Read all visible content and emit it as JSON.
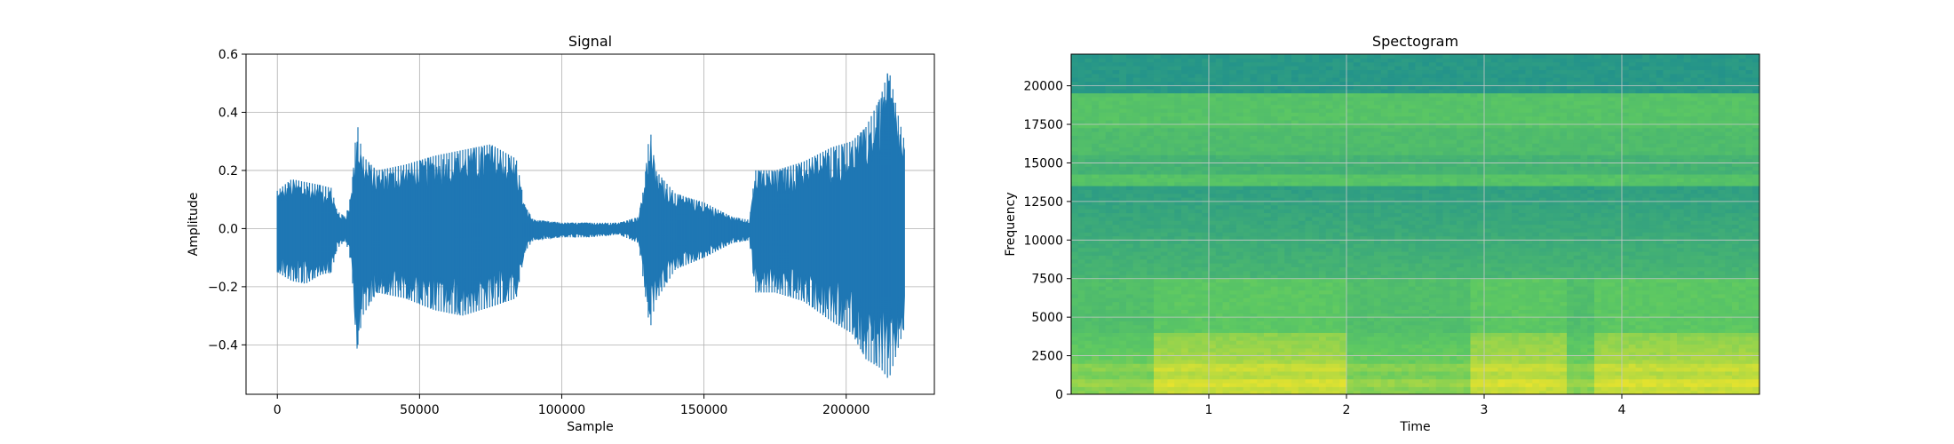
{
  "chart_data": [
    {
      "type": "line",
      "title": "Signal",
      "xlabel": "Sample",
      "ylabel": "Amplitude",
      "xlim": [
        -11000,
        231000
      ],
      "ylim": [
        -0.57,
        0.6
      ],
      "grid": true,
      "xticks": [
        0,
        50000,
        100000,
        150000,
        200000
      ],
      "yticks": [
        -0.4,
        -0.2,
        0.0,
        0.2,
        0.4,
        0.6
      ],
      "xtick_labels": [
        "0",
        "50000",
        "100000",
        "150000",
        "200000"
      ],
      "ytick_labels": [
        "−0.4",
        "−0.2",
        "0.0",
        "0.2",
        "0.4",
        "0.6"
      ],
      "color": "#1f77b4",
      "series": [
        {
          "envelope": [
            {
              "x": 0,
              "max": 0.13,
              "min": -0.15
            },
            {
              "x": 5000,
              "max": 0.17,
              "min": -0.18
            },
            {
              "x": 10000,
              "max": 0.16,
              "min": -0.19
            },
            {
              "x": 15000,
              "max": 0.15,
              "min": -0.16
            },
            {
              "x": 19000,
              "max": 0.14,
              "min": -0.15
            },
            {
              "x": 21000,
              "max": 0.06,
              "min": -0.07
            },
            {
              "x": 24000,
              "max": 0.04,
              "min": -0.04
            },
            {
              "x": 26000,
              "max": 0.12,
              "min": -0.12
            },
            {
              "x": 28000,
              "max": 0.37,
              "min": -0.42
            },
            {
              "x": 30000,
              "max": 0.25,
              "min": -0.3
            },
            {
              "x": 35000,
              "max": 0.2,
              "min": -0.22
            },
            {
              "x": 45000,
              "max": 0.22,
              "min": -0.24
            },
            {
              "x": 55000,
              "max": 0.25,
              "min": -0.28
            },
            {
              "x": 65000,
              "max": 0.27,
              "min": -0.3
            },
            {
              "x": 75000,
              "max": 0.29,
              "min": -0.27
            },
            {
              "x": 84000,
              "max": 0.24,
              "min": -0.24
            },
            {
              "x": 87000,
              "max": 0.08,
              "min": -0.08
            },
            {
              "x": 90000,
              "max": 0.03,
              "min": -0.04
            },
            {
              "x": 100000,
              "max": 0.02,
              "min": -0.03
            },
            {
              "x": 110000,
              "max": 0.02,
              "min": -0.03
            },
            {
              "x": 120000,
              "max": 0.02,
              "min": -0.02
            },
            {
              "x": 127000,
              "max": 0.04,
              "min": -0.05
            },
            {
              "x": 129000,
              "max": 0.15,
              "min": -0.2
            },
            {
              "x": 131000,
              "max": 0.35,
              "min": -0.35
            },
            {
              "x": 133000,
              "max": 0.2,
              "min": -0.25
            },
            {
              "x": 140000,
              "max": 0.12,
              "min": -0.14
            },
            {
              "x": 150000,
              "max": 0.09,
              "min": -0.1
            },
            {
              "x": 160000,
              "max": 0.04,
              "min": -0.05
            },
            {
              "x": 166000,
              "max": 0.03,
              "min": -0.04
            },
            {
              "x": 168000,
              "max": 0.2,
              "min": -0.22
            },
            {
              "x": 175000,
              "max": 0.2,
              "min": -0.22
            },
            {
              "x": 185000,
              "max": 0.23,
              "min": -0.25
            },
            {
              "x": 195000,
              "max": 0.28,
              "min": -0.32
            },
            {
              "x": 202000,
              "max": 0.3,
              "min": -0.36
            },
            {
              "x": 207000,
              "max": 0.35,
              "min": -0.45
            },
            {
              "x": 212000,
              "max": 0.45,
              "min": -0.48
            },
            {
              "x": 215000,
              "max": 0.55,
              "min": -0.52
            },
            {
              "x": 218000,
              "max": 0.4,
              "min": -0.42
            },
            {
              "x": 220500,
              "max": 0.3,
              "min": -0.34
            }
          ]
        }
      ]
    },
    {
      "type": "heatmap",
      "title": "Spectogram",
      "xlabel": "Time",
      "ylabel": "Frequency",
      "xlim": [
        0.0,
        5.0
      ],
      "ylim": [
        0,
        22050
      ],
      "grid": true,
      "xticks": [
        1,
        2,
        3,
        4
      ],
      "yticks": [
        0,
        2500,
        5000,
        7500,
        10000,
        12500,
        15000,
        17500,
        20000
      ],
      "xtick_labels": [
        "1",
        "2",
        "3",
        "4"
      ],
      "ytick_labels": [
        "0",
        "2500",
        "5000",
        "7500",
        "10000",
        "12500",
        "15000",
        "17500",
        "20000"
      ],
      "colormap": "viridis",
      "colors": {
        "top_band": "#27858e",
        "upper_green": "#5cc763",
        "mid_green": "#3fbb6f",
        "low_yellow": "#d8e21d",
        "bright_yellow": "#e6e419"
      },
      "speech_segments": [
        [
          0.6,
          2.0
        ],
        [
          2.9,
          3.6
        ],
        [
          3.8,
          5.0
        ]
      ]
    }
  ]
}
